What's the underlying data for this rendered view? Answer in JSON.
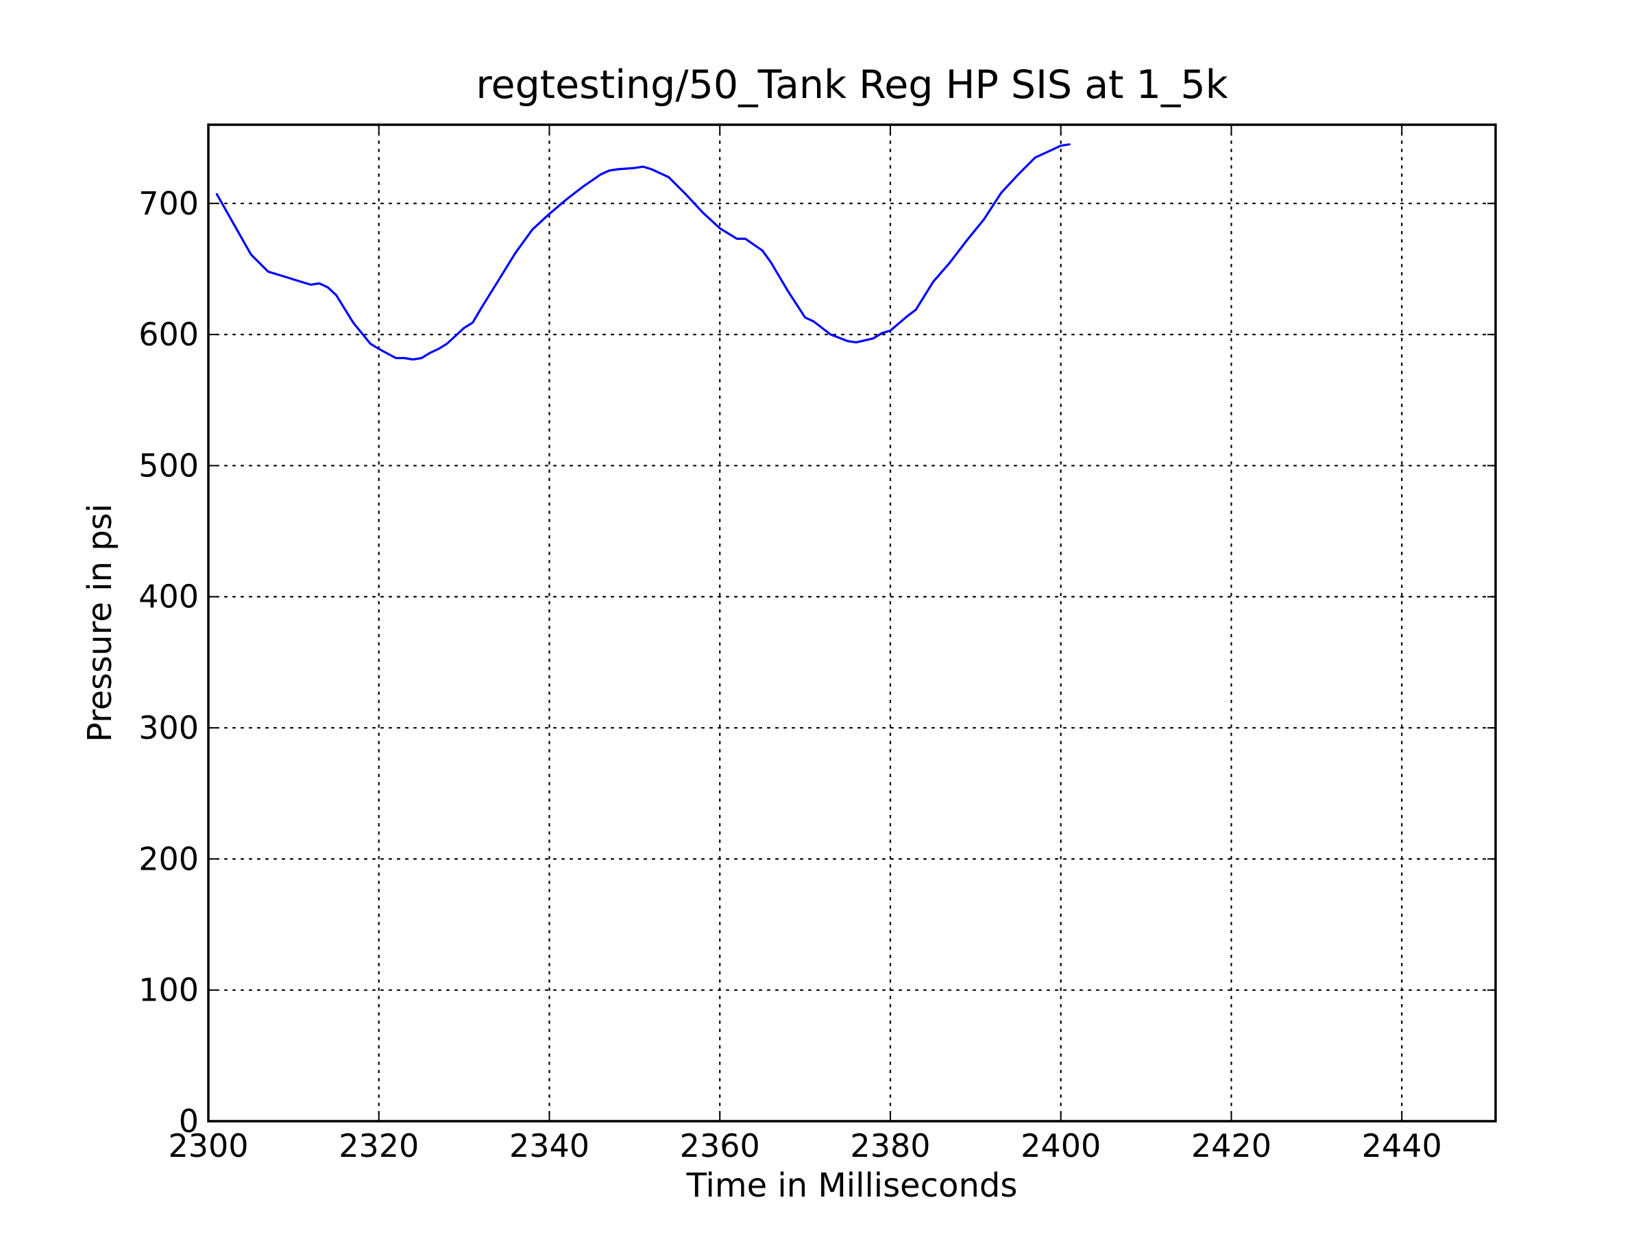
{
  "chart_data": {
    "type": "line",
    "title": "regtesting/50_Tank Reg HP SIS at 1_5k",
    "xlabel": "Time in Milliseconds",
    "ylabel": "Pressure in psi",
    "xlim": [
      2300,
      2451
    ],
    "ylim": [
      0,
      760
    ],
    "xticks": [
      2300,
      2320,
      2340,
      2360,
      2380,
      2400,
      2420,
      2440
    ],
    "yticks": [
      0,
      100,
      200,
      300,
      400,
      500,
      600,
      700
    ],
    "grid": true,
    "line_color": "#0000ff",
    "series": [
      {
        "x": [
          2301,
          2303,
          2305,
          2307,
          2309,
          2311,
          2312,
          2313,
          2314,
          2315,
          2317,
          2319,
          2320,
          2322,
          2323,
          2324,
          2325,
          2326,
          2327,
          2328,
          2330,
          2331,
          2332,
          2334,
          2336,
          2338,
          2340,
          2342,
          2344,
          2346,
          2347,
          2348,
          2350,
          2351,
          2352,
          2354,
          2356,
          2358,
          2360,
          2362,
          2363,
          2365,
          2366,
          2368,
          2370,
          2371,
          2373,
          2375,
          2376,
          2378,
          2379,
          2380,
          2382,
          2383,
          2385,
          2387,
          2389,
          2391,
          2393,
          2395,
          2397,
          2399,
          2400,
          2401
        ],
        "y": [
          707,
          684,
          661,
          648,
          644,
          640,
          638,
          639,
          636,
          630,
          609,
          593,
          589,
          582,
          582,
          581,
          582,
          586,
          589,
          593,
          605,
          609,
          620,
          641,
          662,
          680,
          692,
          703,
          713,
          722,
          725,
          726,
          727,
          728,
          726,
          720,
          707,
          693,
          681,
          673,
          673,
          664,
          655,
          633,
          613,
          610,
          600,
          595,
          594,
          597,
          601,
          603,
          614,
          619,
          640,
          655,
          672,
          688,
          708,
          722,
          735,
          741,
          744,
          745
        ]
      }
    ]
  }
}
